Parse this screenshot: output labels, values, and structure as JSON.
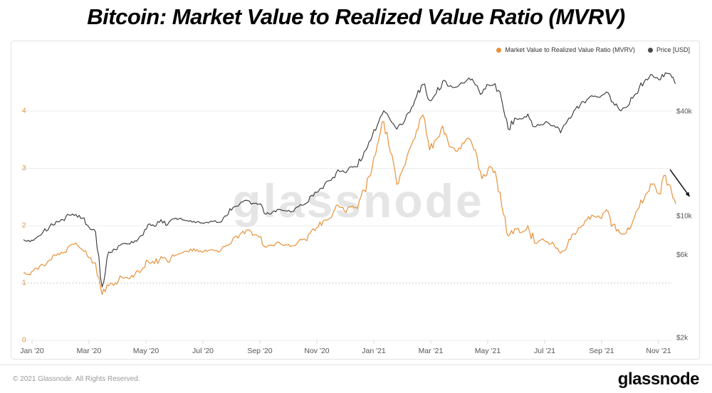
{
  "title": "Bitcoin: Market Value to Realized Value Ratio (MVRV)",
  "watermark": "glassnode",
  "legend": [
    {
      "label": "Market Value to Realized Value Ratio (MVRV)",
      "color": "#E8913A"
    },
    {
      "label": "Price [USD]",
      "color": "#4A4A4A"
    }
  ],
  "footer": {
    "copyright": "© 2021 Glassnode. All Rights Reserved.",
    "logo": "glassnode"
  },
  "chart_data": {
    "type": "line",
    "title": "Bitcoin: Market Value to Realized Value Ratio (MVRV)",
    "x_axis": {
      "unit": "months since Jan 2020",
      "tick_months": [
        0,
        2,
        4,
        6,
        8,
        10,
        12,
        14,
        16,
        18,
        20,
        22
      ],
      "tick_labels": [
        "Jan '20",
        "Mar '20",
        "May '20",
        "Jul '20",
        "Sep '20",
        "Nov '20",
        "Jan '21",
        "Mar '21",
        "May '21",
        "Jul '21",
        "Sep '21",
        "Nov '21"
      ],
      "range_months": [
        -0.35,
        22.95
      ]
    },
    "y_axis_left": {
      "title": "MVRV ratio",
      "ticks": [
        0,
        1,
        2,
        3,
        4
      ],
      "range": [
        0,
        4.66
      ],
      "dotted_line_at": 1,
      "tick_color": "#E8913A"
    },
    "y_axis_right": {
      "title": "Price [USD]",
      "scale": "log",
      "tick_color": "#555555",
      "ticks": [
        {
          "label": "$40k",
          "value_usd_thousands": 40
        },
        {
          "label": "$10k",
          "value_usd_thousands": 10
        },
        {
          "label": "$6k",
          "value_usd_thousands": 6
        },
        {
          "label": "$2k",
          "value_usd_thousands": 2
        }
      ]
    },
    "grid": {
      "color": "#ececec",
      "dotted_color": "#bbbbbb"
    },
    "series": [
      {
        "name": "Market Value to Realized Value Ratio (MVRV)",
        "axis": "left",
        "color": "#E8913A",
        "points": [
          [
            -0.3,
            1.18
          ],
          [
            -0.07,
            1.14
          ],
          [
            0.16,
            1.26
          ],
          [
            0.39,
            1.31
          ],
          [
            0.62,
            1.4
          ],
          [
            0.85,
            1.48
          ],
          [
            1.08,
            1.52
          ],
          [
            1.31,
            1.65
          ],
          [
            1.54,
            1.7
          ],
          [
            1.77,
            1.58
          ],
          [
            2.0,
            1.44
          ],
          [
            2.23,
            1.35
          ],
          [
            2.46,
            0.8
          ],
          [
            2.69,
            0.95
          ],
          [
            2.92,
            1.0
          ],
          [
            3.15,
            1.1
          ],
          [
            3.38,
            1.08
          ],
          [
            3.61,
            1.15
          ],
          [
            3.84,
            1.22
          ],
          [
            4.07,
            1.38
          ],
          [
            4.3,
            1.34
          ],
          [
            4.53,
            1.46
          ],
          [
            4.76,
            1.37
          ],
          [
            4.99,
            1.47
          ],
          [
            5.22,
            1.52
          ],
          [
            5.45,
            1.55
          ],
          [
            5.68,
            1.6
          ],
          [
            5.91,
            1.56
          ],
          [
            6.14,
            1.55
          ],
          [
            6.37,
            1.57
          ],
          [
            6.6,
            1.55
          ],
          [
            6.83,
            1.66
          ],
          [
            7.06,
            1.78
          ],
          [
            7.29,
            1.84
          ],
          [
            7.52,
            1.92
          ],
          [
            7.75,
            1.83
          ],
          [
            7.98,
            1.8
          ],
          [
            8.21,
            1.62
          ],
          [
            8.44,
            1.66
          ],
          [
            8.67,
            1.71
          ],
          [
            8.9,
            1.67
          ],
          [
            9.13,
            1.65
          ],
          [
            9.36,
            1.73
          ],
          [
            9.59,
            1.76
          ],
          [
            9.82,
            1.92
          ],
          [
            10.05,
            1.98
          ],
          [
            10.28,
            2.1
          ],
          [
            10.51,
            2.14
          ],
          [
            10.74,
            2.36
          ],
          [
            10.97,
            2.25
          ],
          [
            11.2,
            2.33
          ],
          [
            11.43,
            2.3
          ],
          [
            11.66,
            2.62
          ],
          [
            11.89,
            2.88
          ],
          [
            12.12,
            3.4
          ],
          [
            12.35,
            3.82
          ],
          [
            12.58,
            3.28
          ],
          [
            12.81,
            2.72
          ],
          [
            13.04,
            3.02
          ],
          [
            13.27,
            3.35
          ],
          [
            13.5,
            3.66
          ],
          [
            13.73,
            3.93
          ],
          [
            13.96,
            3.32
          ],
          [
            14.19,
            3.5
          ],
          [
            14.42,
            3.74
          ],
          [
            14.65,
            3.38
          ],
          [
            14.88,
            3.3
          ],
          [
            15.11,
            3.44
          ],
          [
            15.34,
            3.52
          ],
          [
            15.57,
            3.32
          ],
          [
            15.8,
            2.82
          ],
          [
            16.03,
            3.02
          ],
          [
            16.26,
            2.95
          ],
          [
            16.49,
            2.35
          ],
          [
            16.72,
            1.82
          ],
          [
            16.95,
            1.95
          ],
          [
            17.18,
            1.88
          ],
          [
            17.41,
            2.0
          ],
          [
            17.64,
            1.7
          ],
          [
            17.87,
            1.75
          ],
          [
            18.1,
            1.72
          ],
          [
            18.33,
            1.67
          ],
          [
            18.56,
            1.52
          ],
          [
            18.79,
            1.64
          ],
          [
            19.02,
            1.86
          ],
          [
            19.25,
            1.97
          ],
          [
            19.48,
            2.1
          ],
          [
            19.71,
            2.17
          ],
          [
            19.94,
            2.14
          ],
          [
            20.17,
            2.28
          ],
          [
            20.4,
            2.02
          ],
          [
            20.63,
            1.88
          ],
          [
            20.86,
            1.87
          ],
          [
            21.09,
            2.07
          ],
          [
            21.32,
            2.32
          ],
          [
            21.55,
            2.55
          ],
          [
            21.78,
            2.72
          ],
          [
            22.01,
            2.56
          ],
          [
            22.24,
            2.88
          ],
          [
            22.47,
            2.56
          ],
          [
            22.6,
            2.38
          ]
        ]
      },
      {
        "name": "Price [USD]",
        "axis": "right",
        "unit": "USD thousands",
        "color": "#333333",
        "points": [
          [
            -0.3,
            7.3
          ],
          [
            -0.07,
            7.1
          ],
          [
            0.16,
            7.5
          ],
          [
            0.39,
            8.1
          ],
          [
            0.62,
            8.7
          ],
          [
            0.85,
            9.3
          ],
          [
            1.08,
            9.5
          ],
          [
            1.31,
            10.1
          ],
          [
            1.54,
            10.2
          ],
          [
            1.77,
            9.7
          ],
          [
            2.0,
            8.6
          ],
          [
            2.23,
            8.1
          ],
          [
            2.46,
            3.9
          ],
          [
            2.69,
            6.2
          ],
          [
            2.92,
            6.4
          ],
          [
            3.15,
            6.9
          ],
          [
            3.38,
            6.9
          ],
          [
            3.61,
            7.2
          ],
          [
            3.84,
            7.7
          ],
          [
            4.07,
            8.9
          ],
          [
            4.3,
            8.7
          ],
          [
            4.53,
            9.5
          ],
          [
            4.76,
            8.9
          ],
          [
            4.99,
            9.6
          ],
          [
            5.22,
            9.7
          ],
          [
            5.45,
            9.4
          ],
          [
            5.68,
            9.3
          ],
          [
            5.91,
            9.1
          ],
          [
            6.14,
            9.2
          ],
          [
            6.37,
            9.3
          ],
          [
            6.6,
            9.2
          ],
          [
            6.83,
            10.0
          ],
          [
            7.06,
            11.2
          ],
          [
            7.29,
            11.7
          ],
          [
            7.52,
            12.3
          ],
          [
            7.75,
            11.8
          ],
          [
            7.98,
            11.7
          ],
          [
            8.21,
            10.2
          ],
          [
            8.44,
            10.5
          ],
          [
            8.67,
            10.9
          ],
          [
            8.9,
            10.7
          ],
          [
            9.13,
            10.6
          ],
          [
            9.36,
            11.3
          ],
          [
            9.59,
            11.7
          ],
          [
            9.82,
            13.1
          ],
          [
            10.05,
            13.8
          ],
          [
            10.28,
            15.3
          ],
          [
            10.51,
            16.1
          ],
          [
            10.74,
            18.4
          ],
          [
            10.97,
            17.8
          ],
          [
            11.2,
            19.2
          ],
          [
            11.43,
            19.2
          ],
          [
            11.66,
            23.3
          ],
          [
            11.89,
            27.1
          ],
          [
            12.12,
            33.0
          ],
          [
            12.35,
            40.2
          ],
          [
            12.58,
            35.5
          ],
          [
            12.81,
            31.5
          ],
          [
            13.04,
            34.0
          ],
          [
            13.27,
            39.5
          ],
          [
            13.5,
            48.5
          ],
          [
            13.73,
            57.0
          ],
          [
            13.96,
            46.0
          ],
          [
            14.19,
            50.5
          ],
          [
            14.42,
            59.5
          ],
          [
            14.65,
            55.5
          ],
          [
            14.88,
            55.0
          ],
          [
            15.11,
            58.0
          ],
          [
            15.34,
            62.0
          ],
          [
            15.57,
            56.5
          ],
          [
            15.8,
            50.5
          ],
          [
            16.03,
            56.5
          ],
          [
            16.26,
            57.5
          ],
          [
            16.49,
            46.5
          ],
          [
            16.72,
            31.5
          ],
          [
            16.95,
            36.5
          ],
          [
            17.18,
            36.0
          ],
          [
            17.41,
            38.5
          ],
          [
            17.64,
            32.5
          ],
          [
            17.87,
            33.5
          ],
          [
            18.1,
            34.5
          ],
          [
            18.33,
            33.0
          ],
          [
            18.56,
            30.0
          ],
          [
            18.79,
            35.0
          ],
          [
            19.02,
            40.0
          ],
          [
            19.25,
            43.5
          ],
          [
            19.48,
            46.5
          ],
          [
            19.71,
            48.5
          ],
          [
            19.94,
            48.0
          ],
          [
            20.17,
            51.5
          ],
          [
            20.4,
            45.0
          ],
          [
            20.63,
            40.5
          ],
          [
            20.86,
            42.0
          ],
          [
            21.09,
            47.5
          ],
          [
            21.32,
            54.5
          ],
          [
            21.55,
            61.0
          ],
          [
            21.78,
            64.5
          ],
          [
            22.01,
            60.5
          ],
          [
            22.24,
            66.5
          ],
          [
            22.47,
            62.5
          ],
          [
            22.6,
            57.5
          ]
        ]
      }
    ],
    "annotation": {
      "type": "arrow",
      "description": "downward arrow highlighting MVRV decline at right edge",
      "from_month": 22.4,
      "from_value": 2.98,
      "to_month": 23.1,
      "to_value": 2.5,
      "color": "#111111"
    }
  }
}
